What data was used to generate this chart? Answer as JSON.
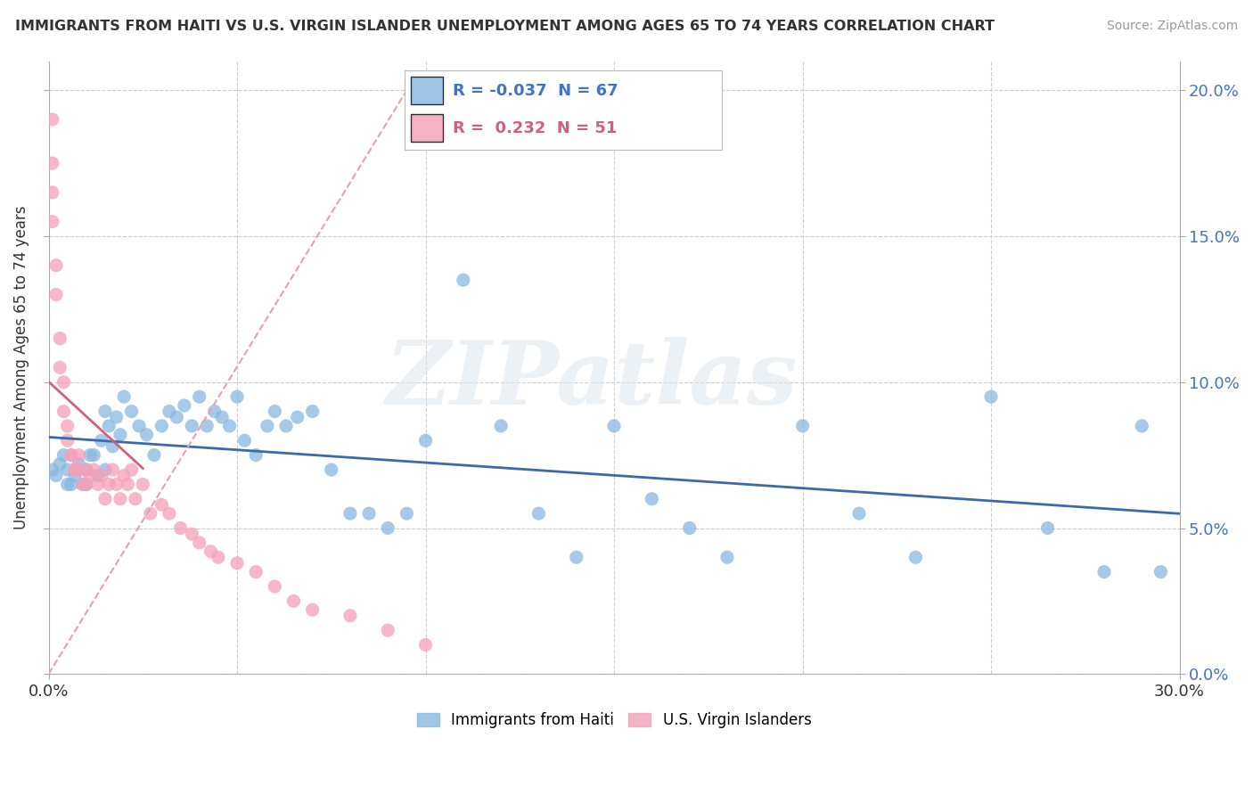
{
  "title": "IMMIGRANTS FROM HAITI VS U.S. VIRGIN ISLANDER UNEMPLOYMENT AMONG AGES 65 TO 74 YEARS CORRELATION CHART",
  "source": "Source: ZipAtlas.com",
  "ylabel": "Unemployment Among Ages 65 to 74 years",
  "xlim": [
    0.0,
    0.3
  ],
  "ylim": [
    0.0,
    0.21
  ],
  "x_tick_positions": [
    0.0,
    0.3
  ],
  "x_tick_labels": [
    "0.0%",
    "30.0%"
  ],
  "y_ticks": [
    0.0,
    0.05,
    0.1,
    0.15,
    0.2
  ],
  "y_tick_labels": [
    "0.0%",
    "5.0%",
    "10.0%",
    "15.0%",
    "20.0%"
  ],
  "haiti_color": "#89b8e0",
  "virgin_color": "#f4a0b8",
  "haiti_R": -0.037,
  "haiti_N": 67,
  "virgin_R": 0.232,
  "virgin_N": 51,
  "haiti_trend_color": "#3a6aaa",
  "virgin_trend_color": "#d06080",
  "virgin_diag_color": "#e8a0b0",
  "watermark_text": "ZIPatlas",
  "background_color": "#ffffff",
  "grid_color": "#cccccc",
  "haiti_scatter_x": [
    0.001,
    0.002,
    0.003,
    0.004,
    0.005,
    0.006,
    0.007,
    0.008,
    0.009,
    0.01,
    0.011,
    0.012,
    0.013,
    0.014,
    0.015,
    0.016,
    0.017,
    0.018,
    0.019,
    0.02,
    0.022,
    0.024,
    0.026,
    0.028,
    0.03,
    0.032,
    0.034,
    0.036,
    0.038,
    0.04,
    0.042,
    0.044,
    0.046,
    0.048,
    0.05,
    0.052,
    0.055,
    0.058,
    0.06,
    0.063,
    0.066,
    0.07,
    0.075,
    0.08,
    0.085,
    0.09,
    0.095,
    0.1,
    0.11,
    0.12,
    0.13,
    0.14,
    0.15,
    0.16,
    0.17,
    0.18,
    0.2,
    0.215,
    0.23,
    0.25,
    0.265,
    0.28,
    0.29,
    0.295,
    0.005,
    0.01,
    0.015
  ],
  "haiti_scatter_y": [
    0.07,
    0.068,
    0.072,
    0.075,
    0.07,
    0.065,
    0.068,
    0.072,
    0.065,
    0.07,
    0.075,
    0.075,
    0.068,
    0.08,
    0.09,
    0.085,
    0.078,
    0.088,
    0.082,
    0.095,
    0.09,
    0.085,
    0.082,
    0.075,
    0.085,
    0.09,
    0.088,
    0.092,
    0.085,
    0.095,
    0.085,
    0.09,
    0.088,
    0.085,
    0.095,
    0.08,
    0.075,
    0.085,
    0.09,
    0.085,
    0.088,
    0.09,
    0.07,
    0.055,
    0.055,
    0.05,
    0.055,
    0.08,
    0.135,
    0.085,
    0.055,
    0.04,
    0.085,
    0.06,
    0.05,
    0.04,
    0.085,
    0.055,
    0.04,
    0.095,
    0.05,
    0.035,
    0.085,
    0.035,
    0.065,
    0.065,
    0.07
  ],
  "virgin_scatter_x": [
    0.001,
    0.001,
    0.002,
    0.002,
    0.003,
    0.003,
    0.004,
    0.004,
    0.005,
    0.005,
    0.006,
    0.006,
    0.007,
    0.007,
    0.008,
    0.008,
    0.009,
    0.01,
    0.01,
    0.011,
    0.012,
    0.013,
    0.014,
    0.015,
    0.016,
    0.017,
    0.018,
    0.019,
    0.02,
    0.021,
    0.022,
    0.023,
    0.025,
    0.027,
    0.03,
    0.032,
    0.035,
    0.038,
    0.04,
    0.043,
    0.045,
    0.05,
    0.055,
    0.06,
    0.065,
    0.07,
    0.08,
    0.09,
    0.1,
    0.001,
    0.001
  ],
  "virgin_scatter_y": [
    0.175,
    0.155,
    0.14,
    0.13,
    0.115,
    0.105,
    0.1,
    0.09,
    0.085,
    0.08,
    0.075,
    0.075,
    0.07,
    0.07,
    0.07,
    0.075,
    0.065,
    0.07,
    0.065,
    0.068,
    0.07,
    0.065,
    0.068,
    0.06,
    0.065,
    0.07,
    0.065,
    0.06,
    0.068,
    0.065,
    0.07,
    0.06,
    0.065,
    0.055,
    0.058,
    0.055,
    0.05,
    0.048,
    0.045,
    0.042,
    0.04,
    0.038,
    0.035,
    0.03,
    0.025,
    0.022,
    0.02,
    0.015,
    0.01,
    0.19,
    0.165
  ],
  "legend_haiti_label": "Immigrants from Haiti",
  "legend_virgin_label": "U.S. Virgin Islanders"
}
